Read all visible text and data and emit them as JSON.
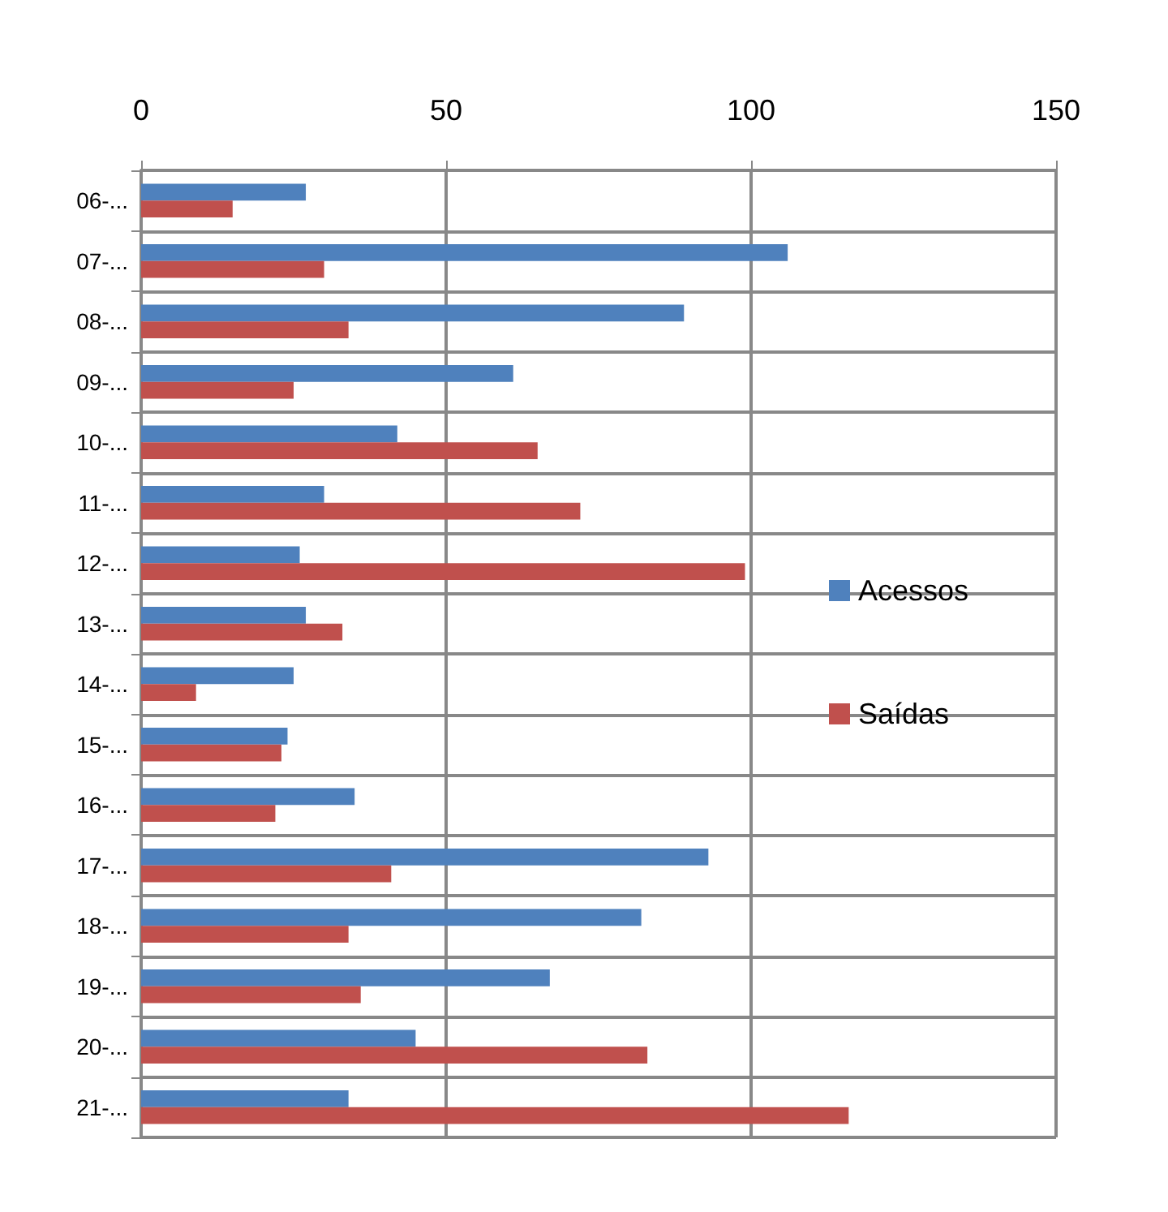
{
  "chart_data": {
    "type": "bar",
    "orientation": "horizontal",
    "categories": [
      "06-...",
      "07-...",
      "08-...",
      "09-...",
      "10-...",
      "11-...",
      "12-...",
      "13-...",
      "14-...",
      "15-...",
      "16-...",
      "17-...",
      "18-...",
      "19-...",
      "20-...",
      "21-..."
    ],
    "series": [
      {
        "name": "Acessos",
        "color": "#4f81bd",
        "values": [
          27,
          106,
          89,
          61,
          42,
          30,
          26,
          27,
          25,
          24,
          35,
          93,
          82,
          67,
          45,
          34
        ]
      },
      {
        "name": "Saídas",
        "color": "#c0504d",
        "values": [
          15,
          30,
          34,
          25,
          65,
          72,
          99,
          33,
          9,
          23,
          22,
          41,
          34,
          36,
          83,
          116
        ]
      }
    ],
    "xlim": [
      0,
      150
    ],
    "xticks": [
      0,
      50,
      100,
      150
    ],
    "grid": true,
    "legend": "right"
  }
}
